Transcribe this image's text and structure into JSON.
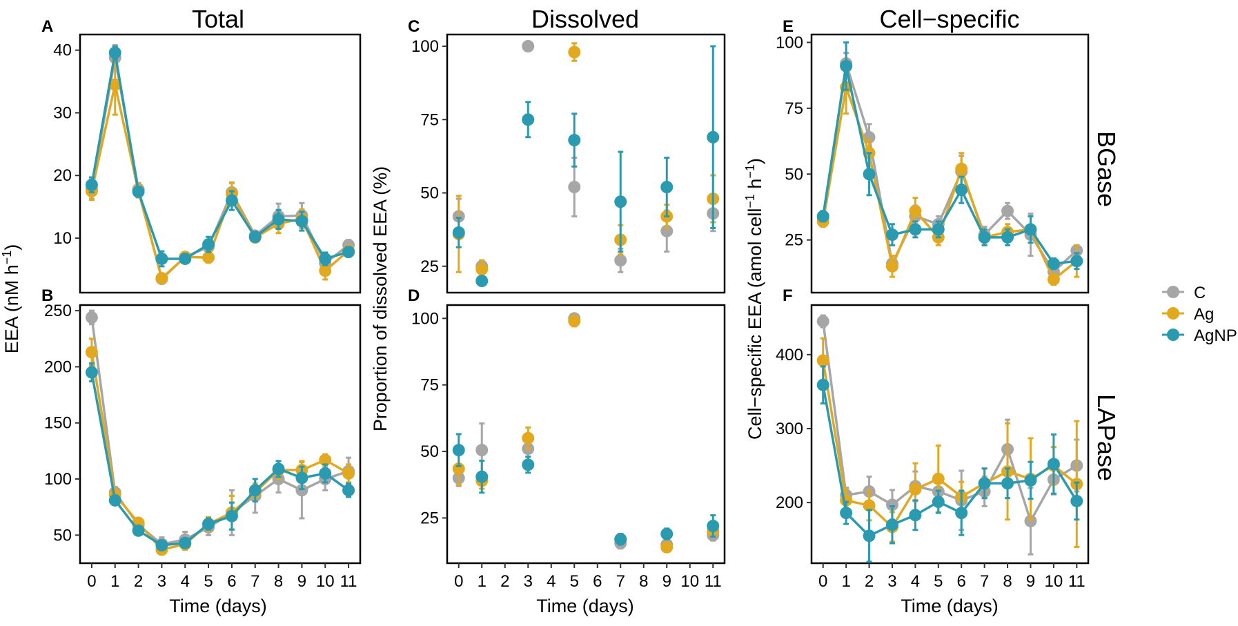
{
  "figure": {
    "column_titles": [
      "Total",
      "Dissolved",
      "Cell−specific"
    ],
    "row_labels": [
      "BGase",
      "LAPase"
    ],
    "legend": [
      {
        "name": "C",
        "color": "#a6a6a6"
      },
      {
        "name": "Ag",
        "color": "#e3a91e"
      },
      {
        "name": "AgNP",
        "color": "#2a9ab1"
      }
    ]
  },
  "chart_data": [
    {
      "type": "line",
      "panel": "A",
      "column": "Total",
      "row": "BGase",
      "xlabel": "Time (days)",
      "ylabel": "EEA (nM h⁻¹)",
      "xlim": [
        -0.5,
        11.5
      ],
      "ylim": [
        1.3,
        42.5
      ],
      "yticks": [
        10,
        20,
        30,
        40
      ],
      "x": [
        0,
        1,
        2,
        3,
        4,
        5,
        6,
        7,
        8,
        9,
        10,
        11
      ],
      "series": [
        {
          "name": "C",
          "values": [
            17.8,
            38.8,
            17.8,
            3.5,
            7.0,
            8.6,
            17.3,
            10.4,
            13.5,
            13.6,
            6.0,
            8.9
          ],
          "errors": [
            1.5,
            2.0,
            1.0,
            0.6,
            0.5,
            1.0,
            1.5,
            0.6,
            2.0,
            2.0,
            0.8,
            0.8
          ]
        },
        {
          "name": "Ag",
          "values": [
            17.5,
            34.5,
            17.5,
            3.6,
            7.0,
            6.9,
            17.1,
            10.1,
            12.3,
            13.1,
            4.8,
            8.0
          ],
          "errors": [
            1.4,
            4.8,
            1.0,
            0.5,
            0.5,
            0.8,
            1.8,
            0.7,
            1.5,
            1.5,
            1.4,
            0.8
          ]
        },
        {
          "name": "AgNP",
          "values": [
            18.5,
            39.6,
            17.4,
            6.7,
            6.7,
            9.0,
            16.0,
            10.2,
            13.0,
            12.7,
            6.7,
            7.8
          ],
          "errors": [
            1.2,
            1.0,
            0.8,
            1.2,
            0.5,
            1.2,
            1.5,
            0.6,
            1.5,
            1.5,
            1.0,
            0.8
          ]
        }
      ]
    },
    {
      "type": "line",
      "panel": "B",
      "column": "Total",
      "row": "LAPase",
      "xlabel": "Time (days)",
      "ylabel": "EEA (nM h⁻¹)",
      "xticks": [
        "0",
        "1",
        "2",
        "3",
        "4",
        "5",
        "6",
        "7",
        "8",
        "9",
        "10",
        "11"
      ],
      "xlim": [
        -0.5,
        11.5
      ],
      "ylim": [
        25,
        255
      ],
      "yticks": [
        50,
        100,
        150,
        200,
        250
      ],
      "x": [
        0,
        1,
        2,
        3,
        4,
        5,
        6,
        7,
        8,
        9,
        10,
        11
      ],
      "series": [
        {
          "name": "C",
          "values": [
            244,
            88,
            59,
            42,
            46,
            57,
            70,
            85,
            100,
            90,
            100,
            107
          ],
          "errors": [
            6,
            5,
            4,
            6,
            7,
            7,
            20,
            15,
            12,
            25,
            10,
            12
          ]
        },
        {
          "name": "Ag",
          "values": [
            213,
            86,
            61,
            37,
            42,
            60,
            70,
            88,
            108,
            108,
            117,
            105
          ],
          "errors": [
            12,
            5,
            4,
            4,
            5,
            6,
            15,
            8,
            8,
            8,
            5,
            8
          ]
        },
        {
          "name": "AgNP",
          "values": [
            195,
            81,
            54,
            41,
            43,
            60,
            67,
            90,
            109,
            101,
            105,
            90
          ],
          "errors": [
            8,
            4,
            4,
            4,
            4,
            5,
            12,
            10,
            7,
            10,
            8,
            6
          ]
        }
      ]
    },
    {
      "type": "scatter",
      "panel": "C",
      "column": "Dissolved",
      "row": "BGase",
      "xlabel": "Time (days)",
      "ylabel": "Proportion of dissolved EEA (%)",
      "xlim": [
        -0.5,
        11.5
      ],
      "ylim": [
        16,
        104
      ],
      "yticks": [
        25,
        50,
        75,
        100
      ],
      "x": [
        0,
        1,
        3,
        5,
        7,
        9,
        11
      ],
      "series": [
        {
          "name": "C",
          "values": [
            42,
            25,
            100,
            52,
            27,
            37,
            43
          ],
          "errors": [
            6,
            2,
            0,
            10,
            4,
            7,
            6
          ]
        },
        {
          "name": "Ag",
          "values": [
            36,
            24,
            null,
            98,
            34,
            42,
            48
          ],
          "errors": [
            13,
            3,
            null,
            3,
            5,
            4,
            8
          ]
        },
        {
          "name": "AgNP",
          "values": [
            36.5,
            20,
            75,
            68,
            47,
            52,
            69
          ],
          "errors": [
            5,
            0,
            6,
            9,
            17,
            10,
            31
          ]
        }
      ]
    },
    {
      "type": "scatter",
      "panel": "D",
      "column": "Dissolved",
      "row": "LAPase",
      "xlabel": "Time (days)",
      "ylabel": "Proportion of dissolved EEA (%)",
      "xticks": [
        "0",
        "1",
        "2",
        "3",
        "4",
        "5",
        "6",
        "7",
        "8",
        "9",
        "10",
        "11"
      ],
      "xlim": [
        -0.5,
        11.5
      ],
      "ylim": [
        8,
        105
      ],
      "yticks": [
        25,
        50,
        75,
        100
      ],
      "x": [
        0,
        1,
        3,
        5,
        7,
        9,
        11
      ],
      "series": [
        {
          "name": "C",
          "values": [
            40,
            50.5,
            51,
            100,
            15.5,
            15,
            18.5
          ],
          "errors": [
            3,
            10,
            3,
            0,
            2,
            2,
            2
          ]
        },
        {
          "name": "Ag",
          "values": [
            43.5,
            39,
            55,
            99,
            17,
            14,
            20
          ],
          "errors": [
            6,
            3,
            4,
            2,
            2,
            1,
            2
          ]
        },
        {
          "name": "AgNP",
          "values": [
            50.5,
            40.5,
            45,
            null,
            17,
            19,
            22
          ],
          "errors": [
            6,
            6,
            3,
            null,
            2,
            2,
            4
          ]
        }
      ]
    },
    {
      "type": "line",
      "panel": "E",
      "column": "Cell−specific",
      "row": "BGase",
      "xlabel": "Time (days)",
      "ylabel": "Cell−specific EEA (amol cell⁻¹ h⁻¹)",
      "xlim": [
        -0.5,
        11.5
      ],
      "ylim": [
        5,
        103
      ],
      "yticks": [
        25,
        50,
        75,
        100
      ],
      "x": [
        0,
        1,
        2,
        3,
        4,
        5,
        6,
        7,
        8,
        9,
        10,
        11
      ],
      "series": [
        {
          "name": "C",
          "values": [
            33,
            92,
            64,
            16,
            34,
            31,
            51,
            27,
            36,
            27,
            13,
            21
          ],
          "errors": [
            2,
            4,
            5,
            2,
            4,
            3,
            6,
            3,
            3,
            8,
            3,
            2
          ]
        },
        {
          "name": "Ag",
          "values": [
            32,
            83,
            58,
            15,
            36,
            26,
            52,
            26,
            28,
            29,
            10,
            17
          ],
          "errors": [
            2,
            10,
            5,
            4,
            5,
            3,
            6,
            3,
            3,
            5,
            2,
            6
          ]
        },
        {
          "name": "AgNP",
          "values": [
            34,
            91,
            50,
            27,
            29,
            29,
            44,
            26,
            26,
            29,
            16,
            17
          ],
          "errors": [
            2,
            9,
            8,
            4,
            3,
            3,
            5,
            3,
            3,
            5,
            2,
            3
          ]
        }
      ]
    },
    {
      "type": "line",
      "panel": "F",
      "column": "Cell−specific",
      "row": "LAPase",
      "xlabel": "Time (days)",
      "ylabel": "Cell−specific EEA (amol cell⁻¹ h⁻¹)",
      "xticks": [
        "0",
        "1",
        "2",
        "3",
        "4",
        "5",
        "6",
        "7",
        "8",
        "9",
        "10",
        "11"
      ],
      "xlim": [
        -0.5,
        11.5
      ],
      "ylim": [
        118,
        467
      ],
      "yticks": [
        200,
        300,
        400
      ],
      "x": [
        0,
        1,
        2,
        3,
        4,
        5,
        6,
        7,
        8,
        9,
        10,
        11
      ],
      "series": [
        {
          "name": "C",
          "values": [
            445,
            210,
            215,
            197,
            222,
            215,
            203,
            215,
            272,
            175,
            231,
            250
          ],
          "errors": [
            8,
            10,
            20,
            20,
            20,
            15,
            40,
            20,
            40,
            45,
            20,
            35
          ]
        },
        {
          "name": "Ag",
          "values": [
            392,
            203,
            196,
            167,
            218,
            232,
            208,
            226,
            242,
            232,
            250,
            225
          ],
          "errors": [
            30,
            15,
            20,
            20,
            35,
            45,
            20,
            20,
            65,
            55,
            25,
            85
          ]
        },
        {
          "name": "AgNP",
          "values": [
            359,
            186,
            155,
            170,
            183,
            201,
            186,
            226,
            226,
            230,
            252,
            202
          ],
          "errors": [
            25,
            15,
            35,
            25,
            20,
            15,
            30,
            20,
            20,
            25,
            40,
            25
          ]
        }
      ]
    }
  ]
}
